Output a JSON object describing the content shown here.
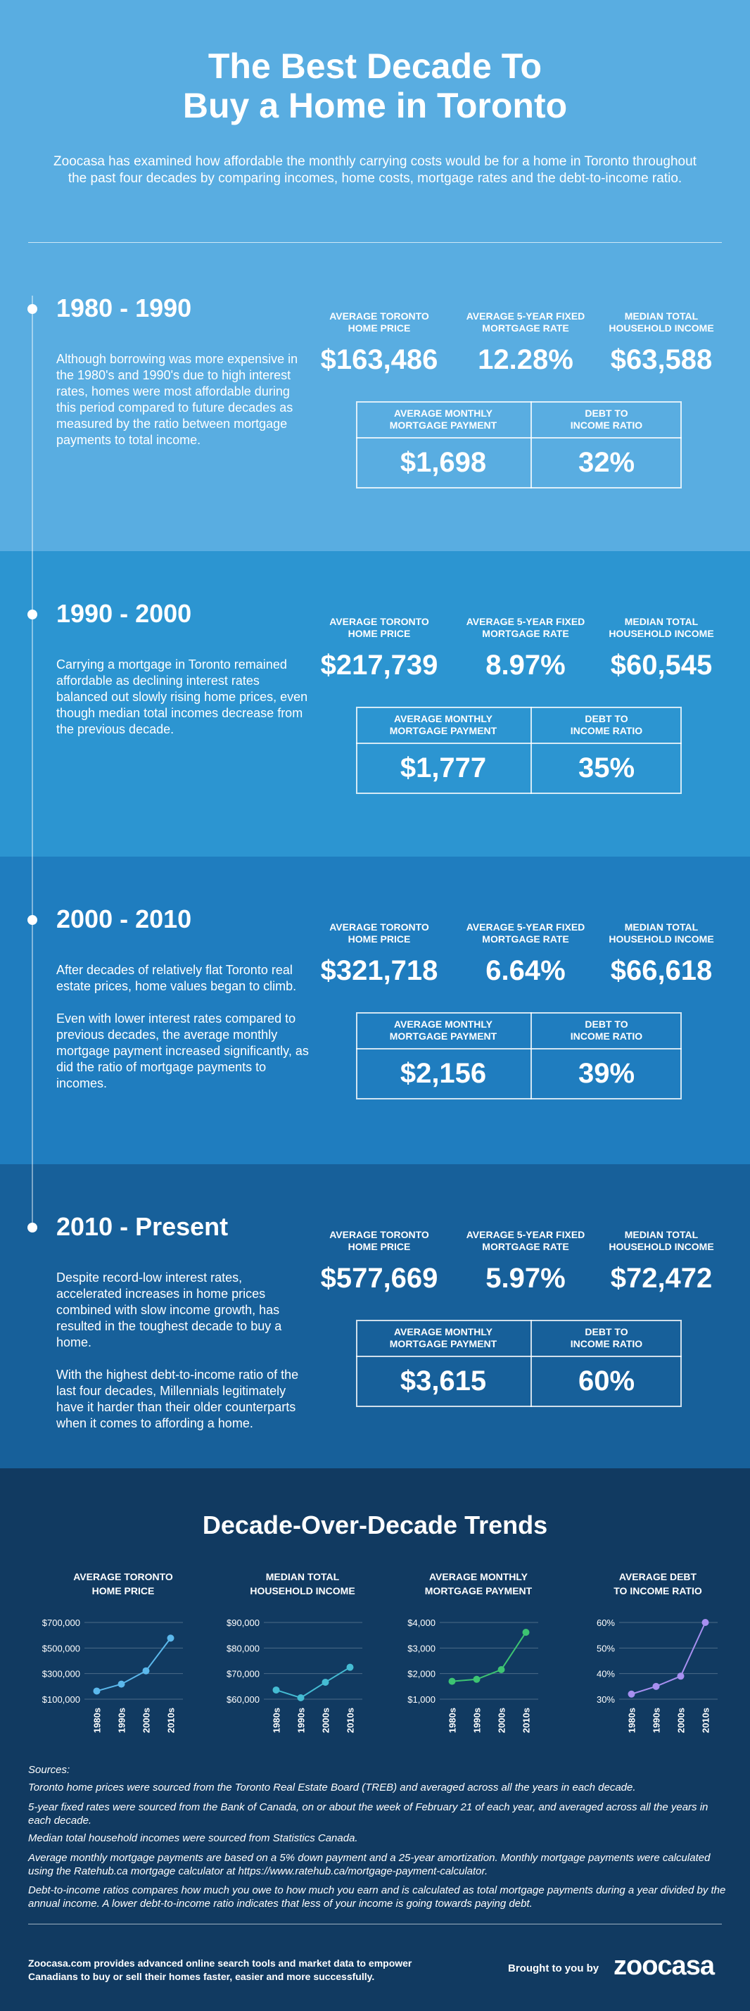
{
  "header": {
    "title": [
      "The Best Decade To",
      "Buy a Home in Toronto"
    ],
    "intro": "Zoocasa has examined how affordable the monthly carrying costs would be for a home in Toronto throughout the past four decades by comparing incomes, home costs, mortgage rates and the debt-to-income ratio."
  },
  "periods": [
    {
      "heading": "1980 - 1990",
      "paragraphs": [
        "Although borrowing was more expensive in the 1980's and 1990's due to high interest rates, homes were most affordable during this period compared to future decades as measured by the ratio between mortgage payments to total income."
      ],
      "stats": [
        {
          "label": [
            "AVERAGE TORONTO",
            "HOME PRICE"
          ],
          "value": "$163,486"
        },
        {
          "label": [
            "AVERAGE 5-YEAR FIXED",
            "MORTGAGE RATE"
          ],
          "value": "12.28%"
        },
        {
          "label": [
            "MEDIAN TOTAL",
            "HOUSEHOLD INCOME"
          ],
          "value": "$63,588"
        }
      ],
      "box": [
        {
          "label": [
            "AVERAGE MONTHLY",
            "MORTGAGE PAYMENT"
          ],
          "value": "$1,698"
        },
        {
          "label": [
            "DEBT TO",
            "INCOME RATIO"
          ],
          "value": "32%"
        }
      ]
    },
    {
      "heading": "1990 - 2000",
      "paragraphs": [
        "Carrying a mortgage in Toronto remained affordable as declining interest rates balanced out slowly rising home prices, even though median total incomes decrease from the previous decade."
      ],
      "stats": [
        {
          "label": [
            "AVERAGE TORONTO",
            "HOME PRICE"
          ],
          "value": "$217,739"
        },
        {
          "label": [
            "AVERAGE 5-YEAR FIXED",
            "MORTGAGE RATE"
          ],
          "value": "8.97%"
        },
        {
          "label": [
            "MEDIAN TOTAL",
            "HOUSEHOLD INCOME"
          ],
          "value": "$60,545"
        }
      ],
      "box": [
        {
          "label": [
            "AVERAGE MONTHLY",
            "MORTGAGE PAYMENT"
          ],
          "value": "$1,777"
        },
        {
          "label": [
            "DEBT TO",
            "INCOME RATIO"
          ],
          "value": "35%"
        }
      ]
    },
    {
      "heading": "2000 - 2010",
      "paragraphs": [
        "After decades of relatively flat Toronto real estate prices, home values began to climb.",
        "Even with lower interest rates compared to previous decades, the average monthly mortgage payment increased significantly, as did the ratio of mortgage payments to incomes."
      ],
      "stats": [
        {
          "label": [
            "AVERAGE TORONTO",
            "HOME PRICE"
          ],
          "value": "$321,718"
        },
        {
          "label": [
            "AVERAGE 5-YEAR FIXED",
            "MORTGAGE RATE"
          ],
          "value": "6.64%"
        },
        {
          "label": [
            "MEDIAN TOTAL",
            "HOUSEHOLD INCOME"
          ],
          "value": "$66,618"
        }
      ],
      "box": [
        {
          "label": [
            "AVERAGE MONTHLY",
            "MORTGAGE PAYMENT"
          ],
          "value": "$2,156"
        },
        {
          "label": [
            "DEBT TO",
            "INCOME RATIO"
          ],
          "value": "39%"
        }
      ]
    },
    {
      "heading": "2010 - Present",
      "paragraphs": [
        "Despite record-low interest rates, accelerated increases in home prices combined with slow income growth, has resulted in the toughest decade to buy a home.",
        "With the highest debt-to-income ratio of the last four decades, Millennials legitimately have it harder than their older counterparts when it comes to affording a home."
      ],
      "stats": [
        {
          "label": [
            "AVERAGE TORONTO",
            "HOME PRICE"
          ],
          "value": "$577,669"
        },
        {
          "label": [
            "AVERAGE 5-YEAR FIXED",
            "MORTGAGE RATE"
          ],
          "value": "5.97%"
        },
        {
          "label": [
            "MEDIAN TOTAL",
            "HOUSEHOLD INCOME"
          ],
          "value": "$72,472"
        }
      ],
      "box": [
        {
          "label": [
            "AVERAGE MONTHLY",
            "MORTGAGE PAYMENT"
          ],
          "value": "$3,615"
        },
        {
          "label": [
            "DEBT TO",
            "INCOME RATIO"
          ],
          "value": "60%"
        }
      ]
    }
  ],
  "trends": {
    "title": "Decade-Over-Decade Trends"
  },
  "chart_data": [
    {
      "type": "line",
      "title": [
        "AVERAGE TORONTO",
        "HOME PRICE"
      ],
      "categories": [
        "1980s",
        "1990s",
        "2000s",
        "2010s"
      ],
      "values": [
        163486,
        217739,
        321718,
        577669
      ],
      "color": "#5bb8ec",
      "ylim": [
        100000,
        700000
      ],
      "yticks": [
        {
          "value": 100000,
          "label": "$100,000"
        },
        {
          "value": 300000,
          "label": "$300,000"
        },
        {
          "value": 500000,
          "label": "$500,000"
        },
        {
          "value": 700000,
          "label": "$700,000"
        }
      ],
      "grid": true
    },
    {
      "type": "line",
      "title": [
        "MEDIAN TOTAL",
        "HOUSEHOLD INCOME"
      ],
      "categories": [
        "1980s",
        "1990s",
        "2000s",
        "2010s"
      ],
      "values": [
        63588,
        60545,
        66618,
        72472
      ],
      "color": "#45bcd3",
      "ylim": [
        60000,
        90000
      ],
      "yticks": [
        {
          "value": 60000,
          "label": "$60,000"
        },
        {
          "value": 70000,
          "label": "$70,000"
        },
        {
          "value": 80000,
          "label": "$80,000"
        },
        {
          "value": 90000,
          "label": "$90,000"
        }
      ],
      "grid": true
    },
    {
      "type": "line",
      "title": [
        "AVERAGE MONTHLY",
        "MORTGAGE PAYMENT"
      ],
      "categories": [
        "1980s",
        "1990s",
        "2000s",
        "2010s"
      ],
      "values": [
        1698,
        1777,
        2156,
        3615
      ],
      "color": "#3dc472",
      "ylim": [
        1000,
        4000
      ],
      "yticks": [
        {
          "value": 1000,
          "label": "$1,000"
        },
        {
          "value": 2000,
          "label": "$2,000"
        },
        {
          "value": 3000,
          "label": "$3,000"
        },
        {
          "value": 4000,
          "label": "$4,000"
        }
      ],
      "grid": true
    },
    {
      "type": "line",
      "title": [
        "AVERAGE DEBT",
        "TO INCOME RATIO"
      ],
      "categories": [
        "1980s",
        "1990s",
        "2000s",
        "2010s"
      ],
      "values": [
        32,
        35,
        39,
        60
      ],
      "color": "#a78ff0",
      "ylim": [
        30,
        60
      ],
      "yticks": [
        {
          "value": 30,
          "label": "30%"
        },
        {
          "value": 40,
          "label": "40%"
        },
        {
          "value": 50,
          "label": "50%"
        },
        {
          "value": 60,
          "label": "60%"
        }
      ],
      "grid": true
    }
  ],
  "sources": {
    "heading": "Sources:",
    "items": [
      "Toronto home prices were sourced from the Toronto Real Estate Board (TREB) and averaged across all the years in each decade.",
      "5-year fixed rates were sourced from the Bank of Canada, on or about the week of February 21 of each year, and averaged across all the years in each decade.",
      "Median total household incomes were sourced from Statistics Canada.",
      "Average monthly mortgage payments are based on a 5% down payment and a 25-year amortization. Monthly mortgage payments were calculated using the Ratehub.ca mortgage calculator at https://www.ratehub.ca/mortgage-payment-calculator.",
      "Debt-to-income ratios compares how much you owe to how much you earn and is calculated as total mortgage payments during a year divided by the annual income. A lower debt-to-income ratio indicates that less of your income is going towards paying debt."
    ]
  },
  "footer": {
    "text": "Zoocasa.com provides advanced online search tools and market data to empower Canadians to buy or sell their homes faster, easier and more successfully.",
    "brought_by": "Brought to you by",
    "brand": "zoocasa"
  }
}
